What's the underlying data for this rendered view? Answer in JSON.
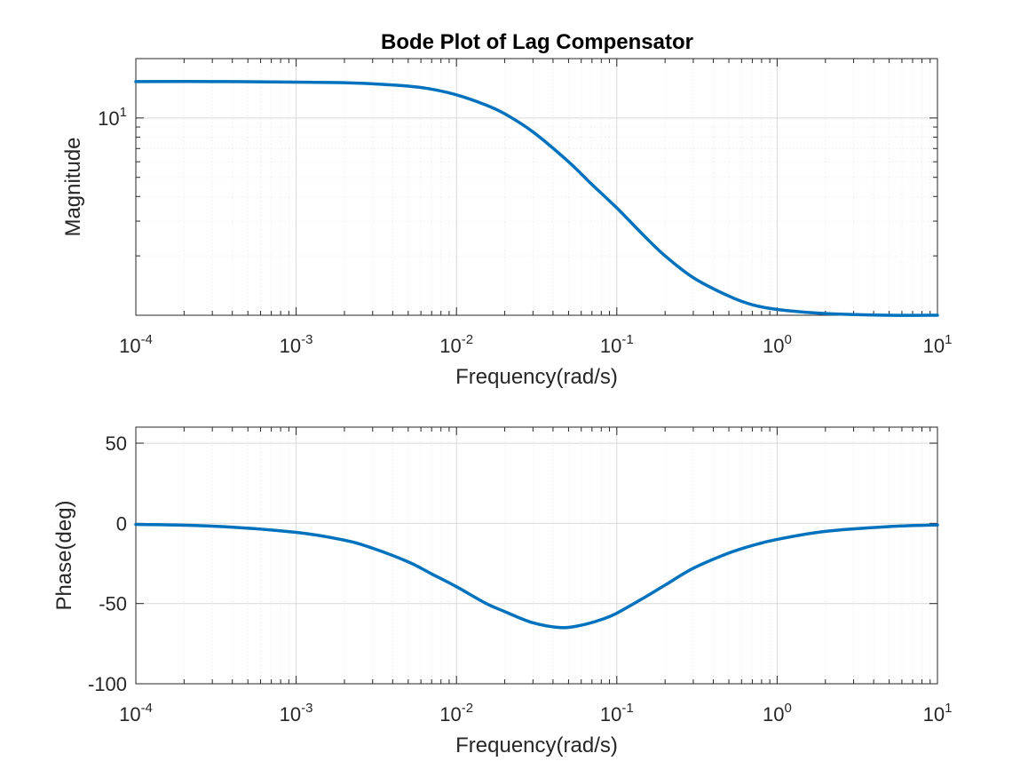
{
  "colors": {
    "line": "#0072BD",
    "axis": "#262626",
    "grid_major": "#d9d9d9",
    "grid_minor": "#e3e3e3",
    "background": "#ffffff"
  },
  "chart_data": [
    {
      "type": "line",
      "title": "Bode Plot of Lag Compensator",
      "xlabel": "Frequency(rad/s)",
      "ylabel": "Magnitude",
      "xscale": "log",
      "yscale": "log",
      "xlim": [
        0.0001,
        10
      ],
      "ylim": [
        1,
        20
      ],
      "x_ticks": [
        0.0001,
        0.001,
        0.01,
        0.1,
        1,
        10
      ],
      "x_tick_labels": [
        {
          "base": "10",
          "exp": "-4"
        },
        {
          "base": "10",
          "exp": "-3"
        },
        {
          "base": "10",
          "exp": "-2"
        },
        {
          "base": "10",
          "exp": "-1"
        },
        {
          "base": "10",
          "exp": "0"
        },
        {
          "base": "10",
          "exp": "1"
        }
      ],
      "y_ticks": [
        10
      ],
      "y_tick_labels": [
        {
          "base": "10",
          "exp": "1"
        }
      ],
      "grid": true,
      "minor_grid": true,
      "series": [
        {
          "x": [
            0.0001,
            0.0003,
            0.001,
            0.002,
            0.003,
            0.005,
            0.007,
            0.01,
            0.015,
            0.02,
            0.03,
            0.05,
            0.07,
            0.1,
            0.15,
            0.2,
            0.3,
            0.5,
            0.7,
            1,
            2,
            5,
            10
          ],
          "y": [
            15.3,
            15.3,
            15.2,
            15.1,
            14.9,
            14.5,
            14,
            13.1,
            11.7,
            10.5,
            8.5,
            6,
            4.6,
            3.5,
            2.5,
            2.0,
            1.55,
            1.25,
            1.13,
            1.07,
            1.02,
            1.0,
            1.0
          ]
        }
      ]
    },
    {
      "type": "line",
      "xlabel": "Frequency(rad/s)",
      "ylabel": "Phase(deg)",
      "xscale": "log",
      "xlim": [
        0.0001,
        10
      ],
      "ylim": [
        -100,
        60
      ],
      "x_ticks": [
        0.0001,
        0.001,
        0.01,
        0.1,
        1,
        10
      ],
      "x_tick_labels": [
        {
          "base": "10",
          "exp": "-4"
        },
        {
          "base": "10",
          "exp": "-3"
        },
        {
          "base": "10",
          "exp": "-2"
        },
        {
          "base": "10",
          "exp": "-1"
        },
        {
          "base": "10",
          "exp": "0"
        },
        {
          "base": "10",
          "exp": "1"
        }
      ],
      "y_ticks": [
        -100,
        -50,
        0,
        50
      ],
      "y_tick_labels": [
        "-100",
        "-50",
        "0",
        "50"
      ],
      "grid": true,
      "minor_grid": true,
      "series": [
        {
          "x": [
            0.0001,
            0.0003,
            0.001,
            0.002,
            0.003,
            0.005,
            0.007,
            0.01,
            0.015,
            0.02,
            0.03,
            0.045,
            0.06,
            0.08,
            0.1,
            0.15,
            0.2,
            0.3,
            0.5,
            0.7,
            1,
            2,
            5,
            10
          ],
          "y": [
            -0.6,
            -1.7,
            -5.6,
            -10.5,
            -15.5,
            -24,
            -31.5,
            -39.5,
            -49.5,
            -55,
            -62,
            -65,
            -63.5,
            -60,
            -56,
            -46,
            -38.5,
            -28,
            -18.5,
            -13.8,
            -10,
            -5,
            -2,
            -1
          ]
        }
      ]
    }
  ]
}
